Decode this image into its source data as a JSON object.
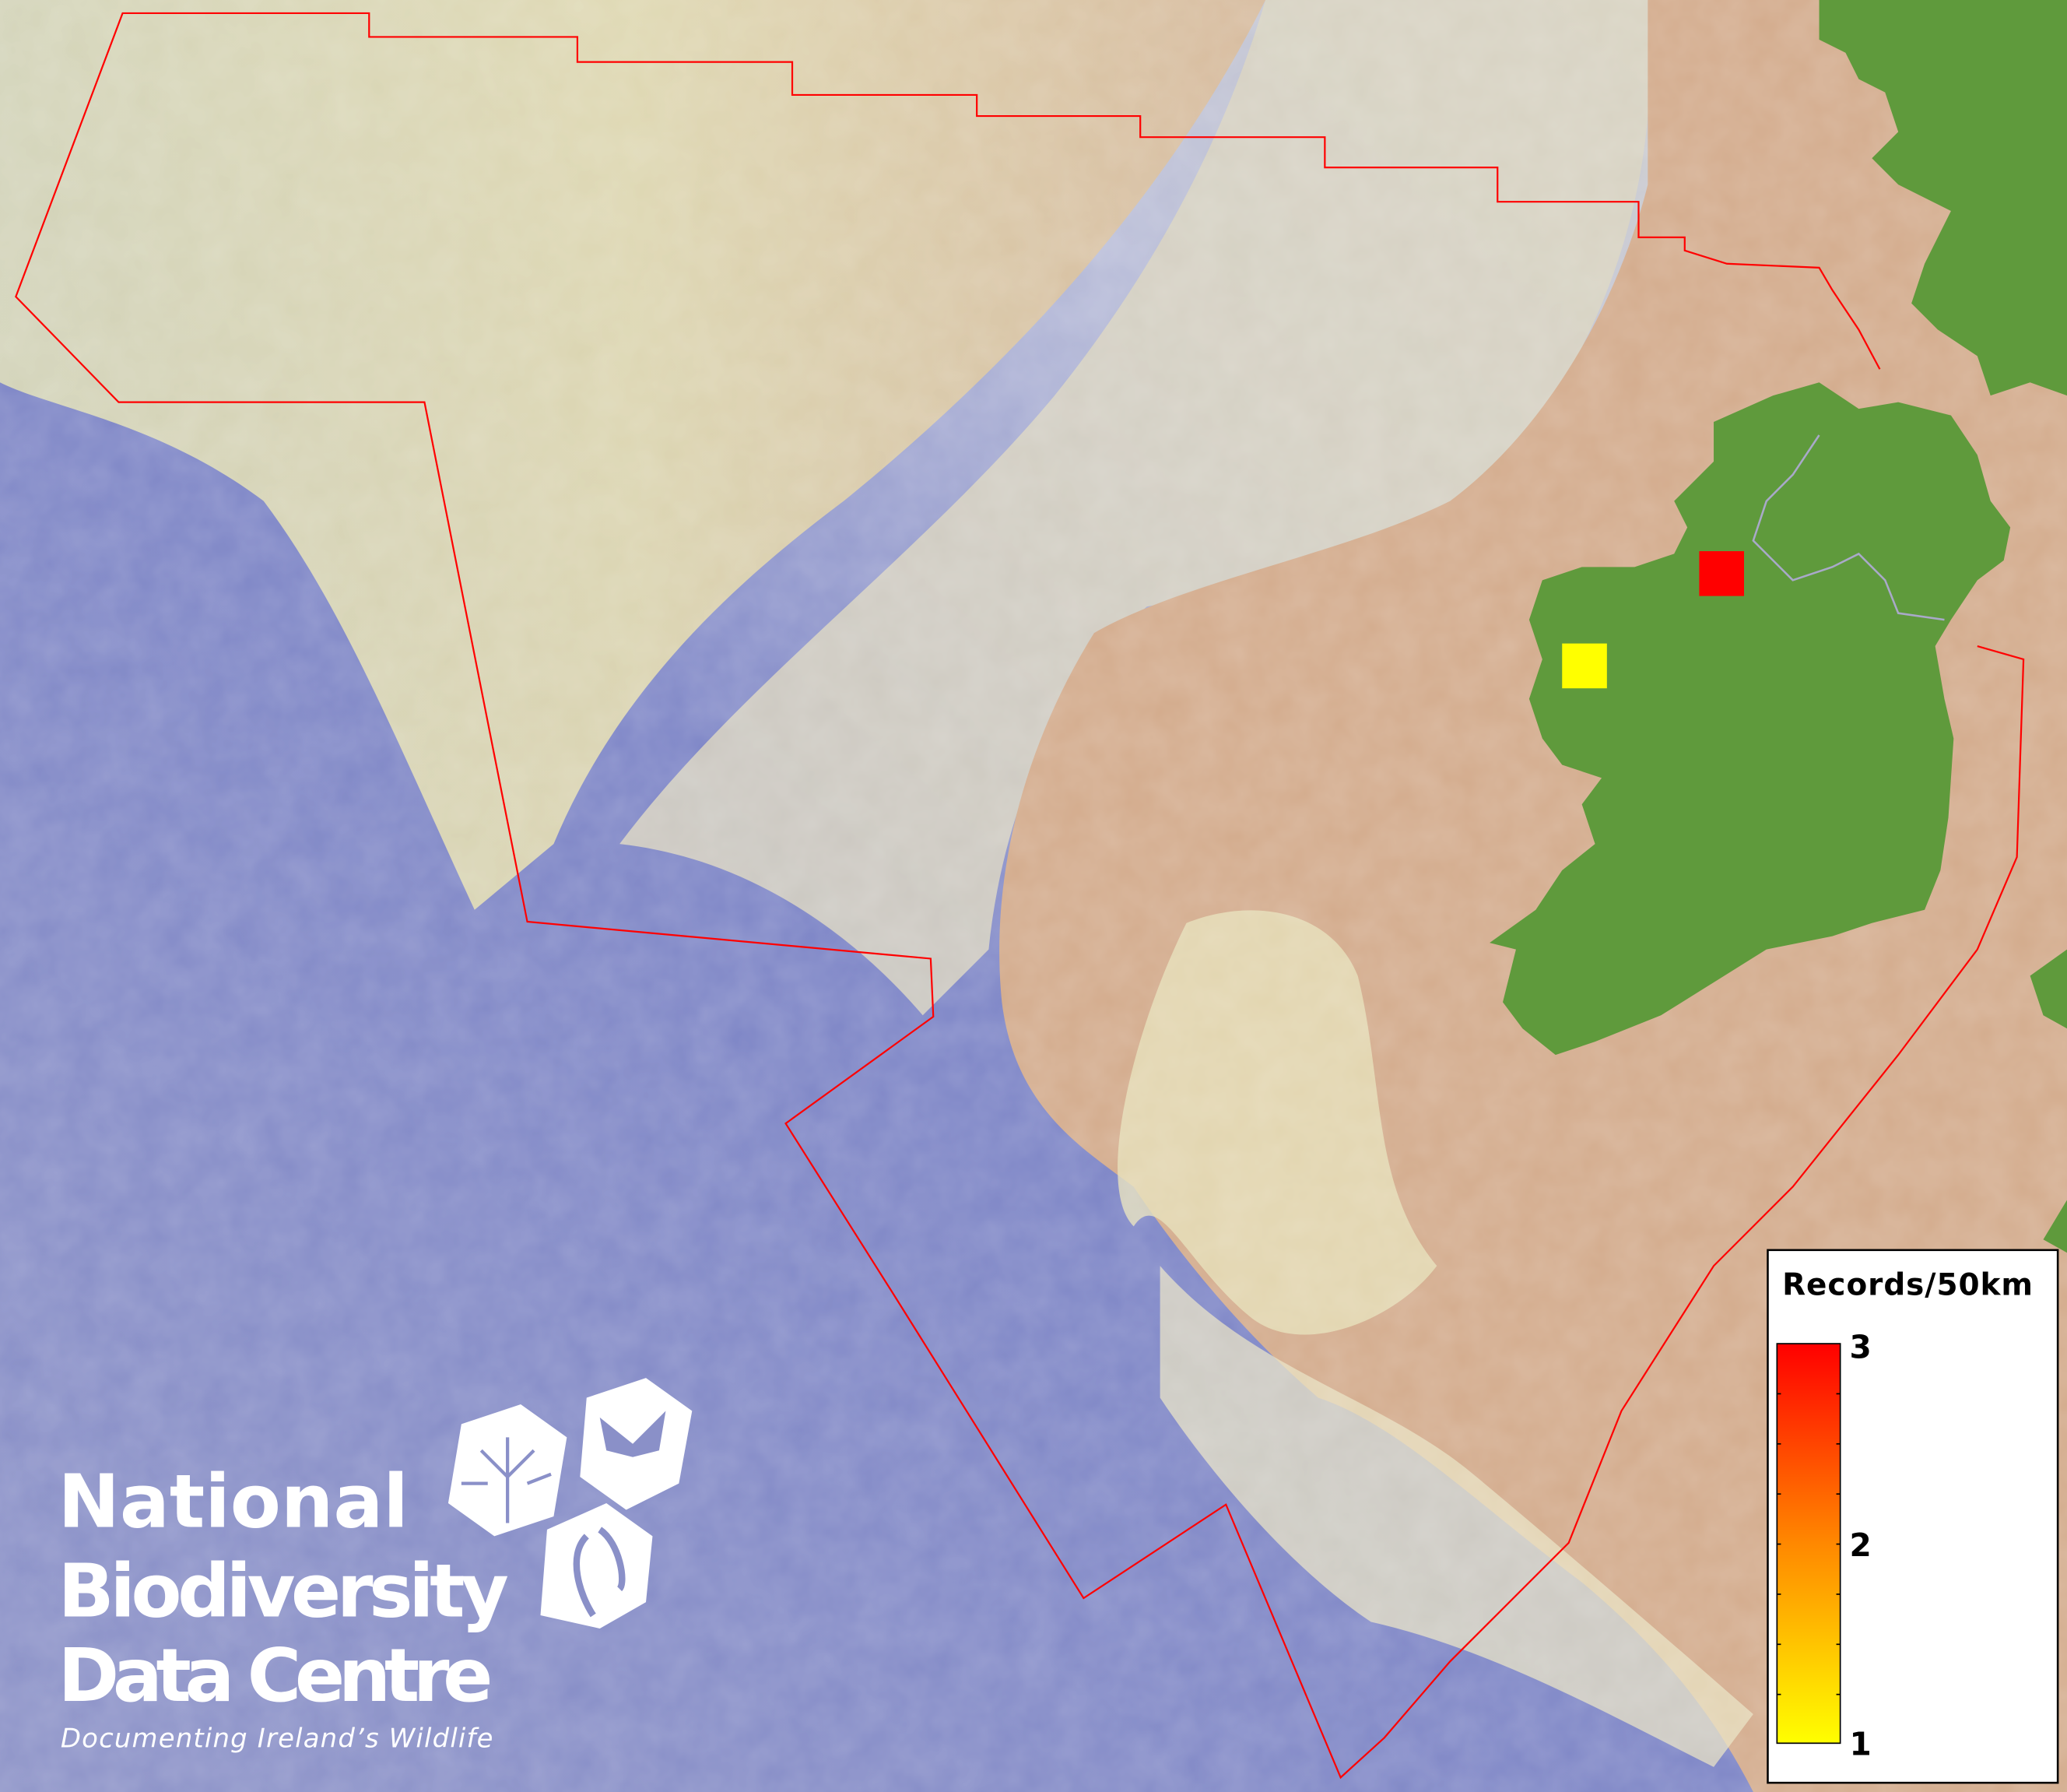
{
  "map": {
    "boundary_color": "#ff0000",
    "land_color": "#5f9a3c",
    "shelf_color": "#d2ab8c",
    "deep_ocean_color": "#7a82c6",
    "records": [
      {
        "label": "record-cell",
        "value": 3,
        "color": "#ff0000"
      },
      {
        "label": "record-cell",
        "value": 1,
        "color": "#ffff00"
      }
    ]
  },
  "legend": {
    "title": "Records/50km",
    "min": 1,
    "max": 3,
    "ticks": [
      "3",
      "2",
      "1"
    ],
    "color_low": "#ffff00",
    "color_mid": "#ff8800",
    "color_high": "#ff0000"
  },
  "logo": {
    "line1": "National",
    "line2": "Biodiversity",
    "line3": "Data Centre",
    "tagline": "Documenting Ireland’s Wildlife",
    "icons": [
      "tree-icon",
      "butterfly-icon",
      "seahorse-icon"
    ]
  }
}
